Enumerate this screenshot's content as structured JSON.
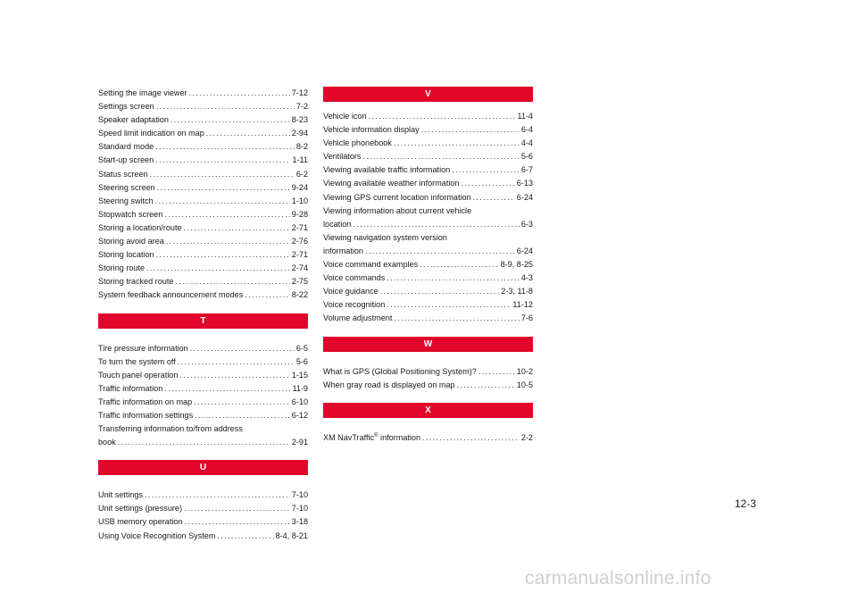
{
  "left": {
    "s_entries": [
      {
        "term": "Setting the image viewer",
        "page": "7-12"
      },
      {
        "term": "Settings screen",
        "page": "7-2"
      },
      {
        "term": "Speaker adaptation",
        "page": "8-23"
      },
      {
        "term": "Speed limit indication on map",
        "page": "2-94"
      },
      {
        "term": "Standard mode",
        "page": "8-2"
      },
      {
        "term": "Start-up screen",
        "page": "1-11"
      },
      {
        "term": "Status screen",
        "page": "6-2"
      },
      {
        "term": "Steering screen",
        "page": "9-24"
      },
      {
        "term": "Steering switch",
        "page": "1-10"
      },
      {
        "term": "Stopwatch screen",
        "page": "9-28"
      },
      {
        "term": "Storing a location/route",
        "page": "2-71"
      },
      {
        "term": "Storing avoid area",
        "page": "2-76"
      },
      {
        "term": "Storing location",
        "page": "2-71"
      },
      {
        "term": "Storing route",
        "page": "2-74"
      },
      {
        "term": "Storing tracked route",
        "page": "2-75"
      },
      {
        "term": "System feedback announcement modes",
        "page": "8-22"
      }
    ],
    "t_heading": "T",
    "t_entries": [
      {
        "term": "Tire pressure information",
        "page": "6-5"
      },
      {
        "term": "To turn the system off",
        "page": "5-6"
      },
      {
        "term": "Touch panel operation",
        "page": "1-15"
      },
      {
        "term": "Traffic information",
        "page": "11-9"
      },
      {
        "term": "Traffic information on map",
        "page": "6-10"
      },
      {
        "term": "Traffic information settings",
        "page": "6-12"
      }
    ],
    "t_wrap": {
      "line1": "Transferring information to/from address",
      "line2": "book",
      "page": "2-91"
    },
    "u_heading": "U",
    "u_entries": [
      {
        "term": "Unit settings",
        "page": "7-10"
      },
      {
        "term": "Unit settings (pressure)",
        "page": "7-10"
      },
      {
        "term": "USB memory operation",
        "page": "3-18"
      },
      {
        "term": "Using Voice Recognition System",
        "page": "8-4, 8-21"
      }
    ]
  },
  "right": {
    "v_heading": "V",
    "v_entries_a": [
      {
        "term": "Vehicle icon",
        "page": "11-4"
      },
      {
        "term": "Vehicle information display",
        "page": "6-4"
      },
      {
        "term": "Vehicle phonebook",
        "page": "4-4"
      },
      {
        "term": "Ventilators",
        "page": "5-6"
      },
      {
        "term": "Viewing available traffic information",
        "page": "6-7"
      },
      {
        "term": "Viewing available weather information",
        "page": "6-13"
      },
      {
        "term": "Viewing GPS current location information",
        "page": "6-24"
      }
    ],
    "v_wrap1": {
      "line1": "Viewing information about current vehicle",
      "line2": "location",
      "page": "6-3"
    },
    "v_wrap2": {
      "line1": "Viewing navigation system version",
      "line2": "information",
      "page": "6-24"
    },
    "v_entries_b": [
      {
        "term": "Voice command examples",
        "page": "8-9, 8-25"
      },
      {
        "term": "Voice commands",
        "page": "4-3"
      },
      {
        "term": "Voice guidance",
        "page": "2-3, 11-8"
      },
      {
        "term": "Voice recognition",
        "page": "11-12"
      },
      {
        "term": "Volume adjustment",
        "page": "7-6"
      }
    ],
    "w_heading": "W",
    "w_entries": [
      {
        "term": "What is GPS (Global Positioning System)?",
        "page": "10-2"
      },
      {
        "term": "When gray road is displayed on map",
        "page": "10-5"
      }
    ],
    "x_heading": "X",
    "x_entry": {
      "term_pre": "XM NavTraffic",
      "sup": "®",
      "term_post": " information",
      "page": "2-2"
    }
  },
  "page_number": "12-3",
  "watermark": "carmanualsonline.info"
}
